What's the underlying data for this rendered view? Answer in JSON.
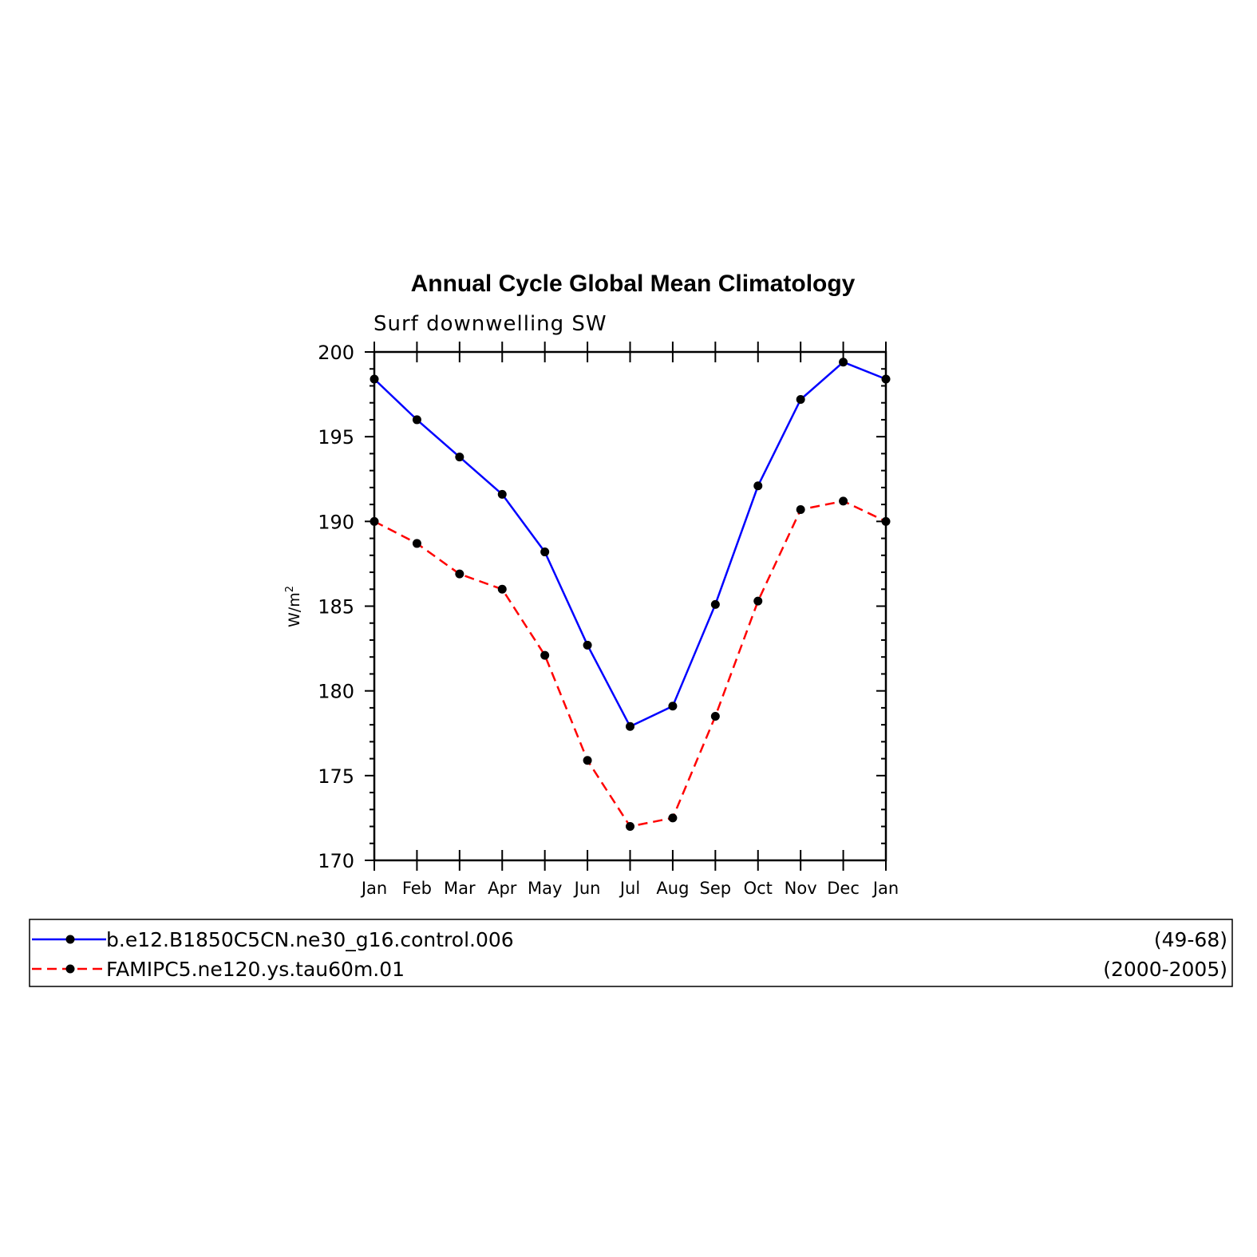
{
  "chart_data": {
    "type": "line",
    "title": "Annual Cycle Global Mean Climatology",
    "subtitle": "Surf downwelling SW",
    "ylabel_base": "W/m",
    "ylabel_sup": "2",
    "xlabel": "",
    "categories": [
      "Jan",
      "Feb",
      "Mar",
      "Apr",
      "May",
      "Jun",
      "Jul",
      "Aug",
      "Sep",
      "Oct",
      "Nov",
      "Dec",
      "Jan"
    ],
    "ylim": [
      170,
      200
    ],
    "yticks": [
      "170",
      "175",
      "180",
      "185",
      "190",
      "195",
      "200"
    ],
    "y_minor_step": 1,
    "grid": false,
    "series": [
      {
        "name": "b.e12.B1850C5CN.ne30_g16.control.006",
        "years": "(49-68)",
        "color": "#0000ff",
        "dash": "solid",
        "marker": "filled-circle",
        "values": [
          198.4,
          196.0,
          193.8,
          191.6,
          188.2,
          182.7,
          177.9,
          179.1,
          185.1,
          192.1,
          197.2,
          199.4,
          198.4
        ]
      },
      {
        "name": "FAMIPC5.ne120.ys.tau60m.01",
        "years": "(2000-2005)",
        "color": "#ff0000",
        "dash": "dashed",
        "marker": "filled-circle",
        "values": [
          190.0,
          188.7,
          186.9,
          186.0,
          182.1,
          175.9,
          172.0,
          172.5,
          178.5,
          185.3,
          190.7,
          191.2,
          190.0
        ]
      }
    ],
    "legend": "bottom"
  }
}
